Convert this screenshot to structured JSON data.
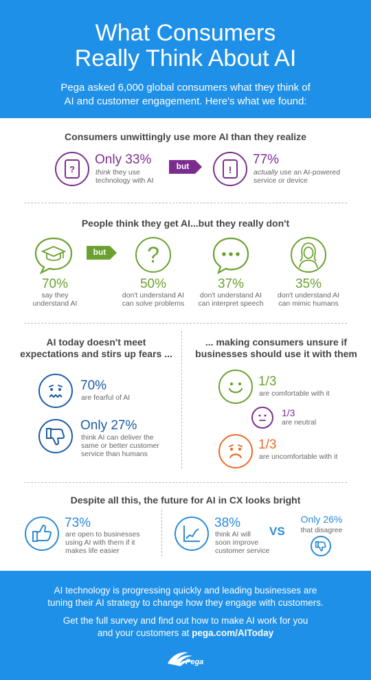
{
  "header": {
    "title_line1": "What Consumers",
    "title_line2": "Really Think About AI",
    "subtitle_line1": "Pega asked 6,000 global consumers what they think of",
    "subtitle_line2": "AI and customer engagement. Here's what we found:"
  },
  "section1": {
    "title": "Consumers unwittingly use more AI than they realize",
    "left_stat": "Only 33%",
    "left_desc_em": "think",
    "left_desc_rest": " they use",
    "left_desc_line2": "technology with AI",
    "but_label": "but",
    "right_stat": "77%",
    "right_desc_em": "actually",
    "right_desc_rest": " use an AI-powered",
    "right_desc_line2": "service or device"
  },
  "section2": {
    "title": "People think they get AI...but they really don't",
    "but_label": "but",
    "items": [
      {
        "stat": "70%",
        "line1": "say they",
        "line2": "understand AI"
      },
      {
        "stat": "50%",
        "line1": "don't understand AI",
        "line2": "can solve problems"
      },
      {
        "stat": "37%",
        "line1": "don't understand AI",
        "line2": "can interpret speech"
      },
      {
        "stat": "35%",
        "line1": "don't understand AI",
        "line2": "can mimic humans"
      }
    ]
  },
  "section3": {
    "left_title_line1": "AI today doesn't meet",
    "left_title_line2": "expectations and stirs up fears ...",
    "fear_stat": "70%",
    "fear_desc": "are fearful of AI",
    "deliver_stat": "Only 27%",
    "deliver_line1": "think AI can deliver the",
    "deliver_line2": "same or better customer",
    "deliver_line3": "service than humans",
    "right_title_line1": "... making consumers unsure if",
    "right_title_line2": "businesses should use it with them",
    "comfortable_stat": "1/3",
    "comfortable_desc": "are comfortable with it",
    "neutral_stat": "1/3",
    "neutral_desc": "are neutral",
    "uncomfortable_stat": "1/3",
    "uncomfortable_desc": "are uncomfortable with it"
  },
  "section4": {
    "title": "Despite all this, the future for AI in CX looks bright",
    "open_stat": "73%",
    "open_line1": "are open to businesses",
    "open_line2": "using AI with them if it",
    "open_line3": "makes life easier",
    "improve_stat": "38%",
    "improve_line1": "think AI will",
    "improve_line2": "soon improve",
    "improve_line3": "customer service",
    "vs_label": "VS",
    "disagree_stat": "Only 26%",
    "disagree_desc": "that disagree"
  },
  "footer": {
    "line1a": "AI technology is progressing quickly and leading businesses are",
    "line1b": "tuning their AI strategy to change how they engage with customers.",
    "line2a": "Get the full survey and find out how to make AI work for you",
    "line2b_prefix": "and your customers at ",
    "line2b_link": "pega.com/AIToday",
    "logo_text": "Pega"
  },
  "colors": {
    "header_blue": "#1e90e8",
    "purple": "#7b2d8e",
    "green": "#6aa12f",
    "dark_blue": "#1a5aa6",
    "light_blue": "#2a8ad9",
    "orange": "#ee6a27"
  }
}
